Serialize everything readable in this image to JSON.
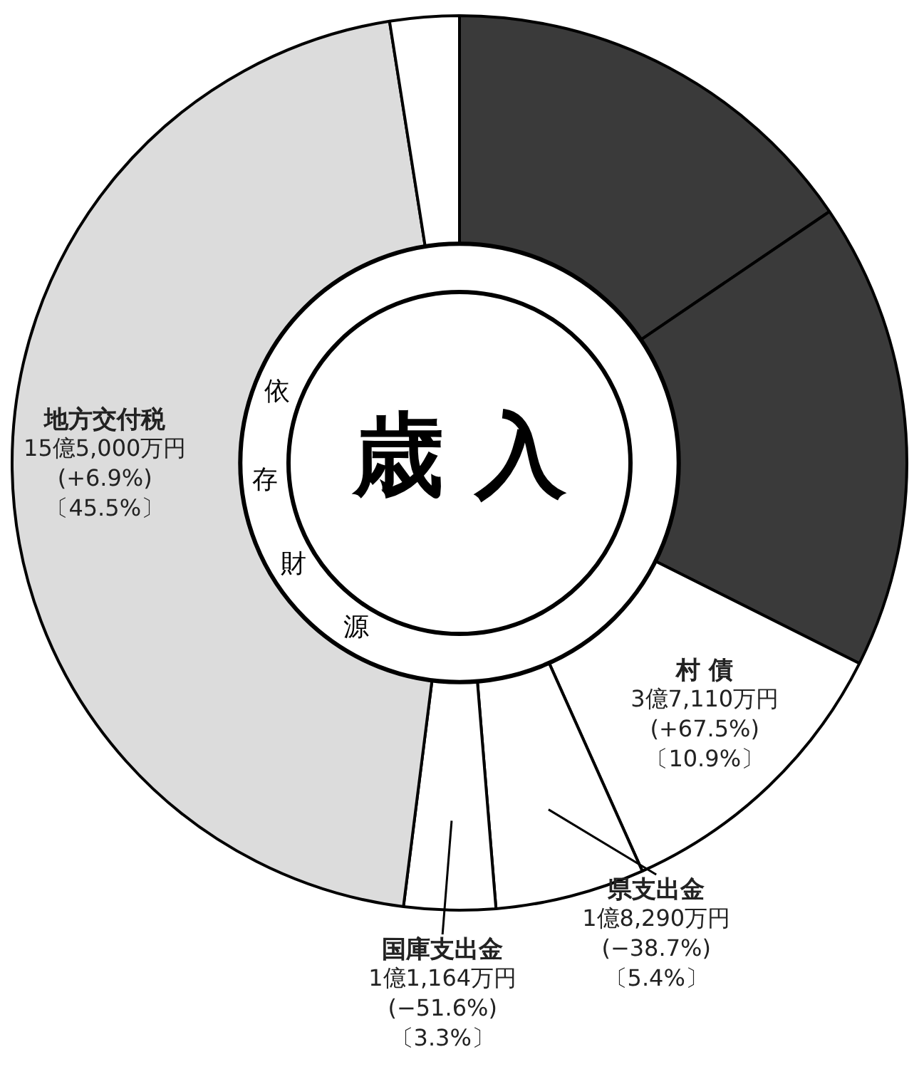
{
  "chart_data": {
    "type": "donut",
    "title": "歳入",
    "categories": [
      null,
      null,
      "村 債",
      "県支出金",
      "国庫支出金",
      "地方交付税",
      null
    ],
    "values": [
      15.5,
      16.9,
      10.9,
      5.4,
      3.3,
      45.5,
      2.5
    ],
    "colors": [
      "#3a3a3a",
      "#3a3a3a",
      "#ffffff",
      "#ffffff",
      "#ffffff",
      "#dcdcdc",
      "#ffffff"
    ],
    "value_labels": [
      null,
      null,
      "3億7,110万円\n(+67.5%)\n〔10.9%〕",
      "1億8,290万円\n(−38.7%)\n〔5.4%〕",
      "1億1,164万円\n(−51.6%)\n〔3.3%〕",
      "15億5,000万円\n(+6.9%)\n〔45.5%〕",
      null
    ],
    "annotations": [
      "依存財源"
    ],
    "legend": false
  }
}
